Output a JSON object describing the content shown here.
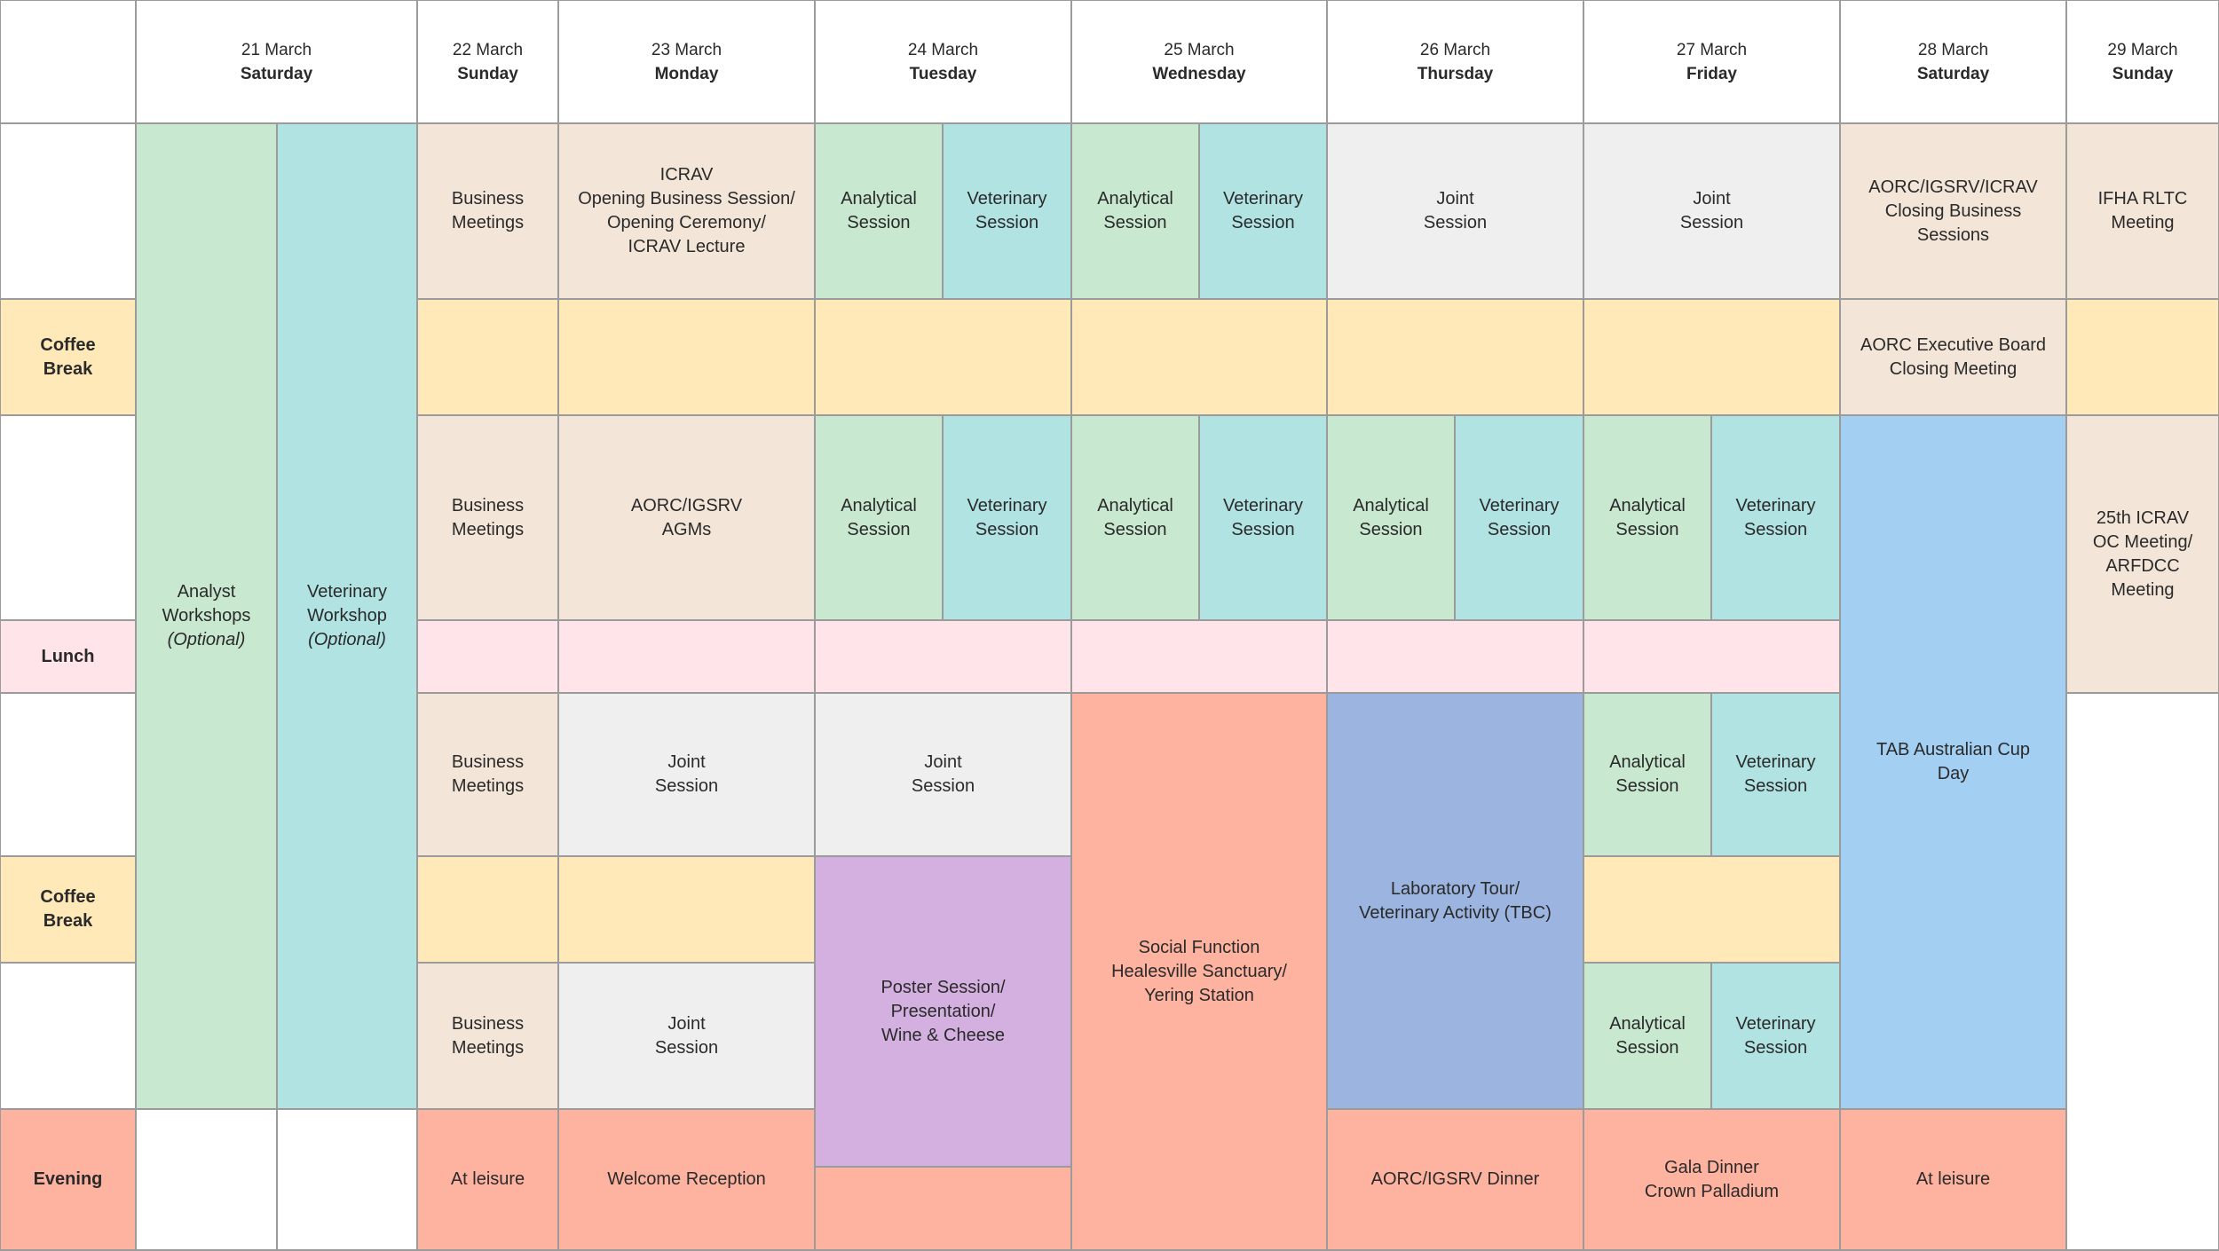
{
  "colors": {
    "business": "#f3e6d8",
    "analytical": "#c8e8d0",
    "veterinary": "#b0e3e2",
    "joint": "#efefef",
    "coffee": "#ffe9b9",
    "lunch": "#ffe4ea",
    "evening_event": "#fdb3a0",
    "laboratory": "#9cb4e0",
    "poster": "#d4b0e0",
    "cup_day": "#a2cff2",
    "border": "#9b9b9b"
  },
  "days": [
    {
      "date": "21 March",
      "weekday": "Saturday"
    },
    {
      "date": "22 March",
      "weekday": "Sunday"
    },
    {
      "date": "23 March",
      "weekday": "Monday"
    },
    {
      "date": "24 March",
      "weekday": "Tuesday"
    },
    {
      "date": "25 March",
      "weekday": "Wednesday"
    },
    {
      "date": "26 March",
      "weekday": "Thursday"
    },
    {
      "date": "27 March",
      "weekday": "Friday"
    },
    {
      "date": "28 March",
      "weekday": "Saturday"
    },
    {
      "date": "29 March",
      "weekday": "Sunday"
    }
  ],
  "side_labels": {
    "coffee_break": "Coffee\nBreak",
    "lunch": "Lunch",
    "evening": "Evening"
  },
  "workshops": {
    "analyst": "Analyst\nWorkshops",
    "veterinary": "Veterinary\nWorkshop",
    "optional": "(Optional)"
  },
  "sessions": {
    "business_meetings": "Business\nMeetings",
    "analytical_session": "Analytical\nSession",
    "veterinary_session": "Veterinary\nSession",
    "joint_session": "Joint\nSession",
    "icrav_opening": "ICRAV\nOpening Business Session/\nOpening Ceremony/\nICRAV Lecture",
    "aorc_igsrv_agms": "AORC/IGSRV\nAGMs",
    "aorc_closing": "AORC/IGSRV/ICRAV\nClosing Business\nSessions",
    "ifha_meeting": "IFHA RLTC\nMeeting",
    "aorc_exec_board": "AORC Executive Board\nClosing Meeting",
    "icrav_oc_meeting": "25th ICRAV\nOC Meeting/\nARFDCC\nMeeting",
    "tab_cup_day": "TAB Australian Cup\nDay",
    "social_function": "Social Function\nHealesville Sanctuary/\nYering Station",
    "lab_tour": "Laboratory Tour/\nVeterinary Activity (TBC)",
    "poster_session": "Poster Session/\nPresentation/\nWine & Cheese"
  },
  "evening": {
    "at_leisure": "At leisure",
    "welcome_reception": "Welcome Reception",
    "aorc_dinner": "AORC/IGSRV Dinner",
    "gala_dinner": "Gala Dinner\nCrown Palladium"
  }
}
